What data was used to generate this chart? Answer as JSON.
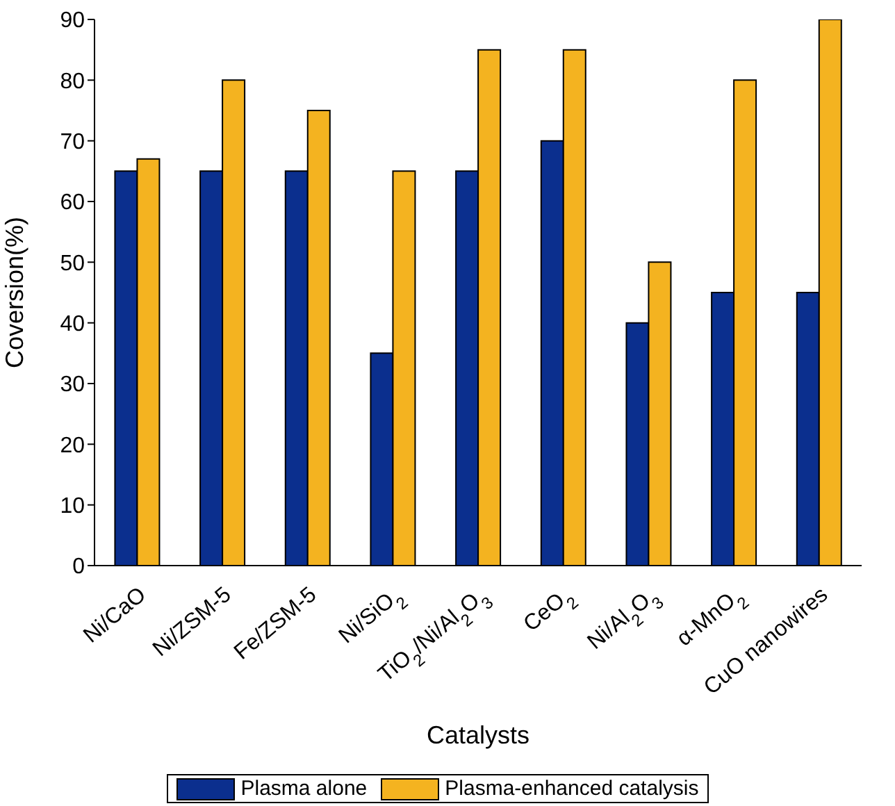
{
  "chart_data": {
    "type": "bar",
    "xlabel": "Catalysts",
    "ylabel": "Coversion(%)",
    "categories": [
      "Ni/CaO",
      "Ni/ZSM-5",
      "Fe/ZSM-5",
      "Ni/SiO$_{2}$",
      "TiO$_{2}$/Ni/Al$_{2}$O$_{3}$",
      "CeO$_{2}$",
      "Ni/Al$_{2}$O$_{3}$",
      "α-MnO$_{2}$",
      "CuO nanowires"
    ],
    "series": [
      {
        "name": "Plasma alone",
        "color": "#0b2f8e",
        "values": [
          65,
          65,
          65,
          35,
          65,
          70,
          40,
          45,
          45
        ]
      },
      {
        "name": "Plasma-enhanced catalysis",
        "color": "#f4b320",
        "values": [
          67,
          80,
          75,
          65,
          85,
          85,
          50,
          80,
          90
        ]
      }
    ],
    "ylim": [
      0,
      90
    ],
    "yticks": [
      0,
      10,
      20,
      30,
      40,
      50,
      60,
      70,
      80,
      90
    ],
    "grid": false,
    "legend": "bottom"
  }
}
